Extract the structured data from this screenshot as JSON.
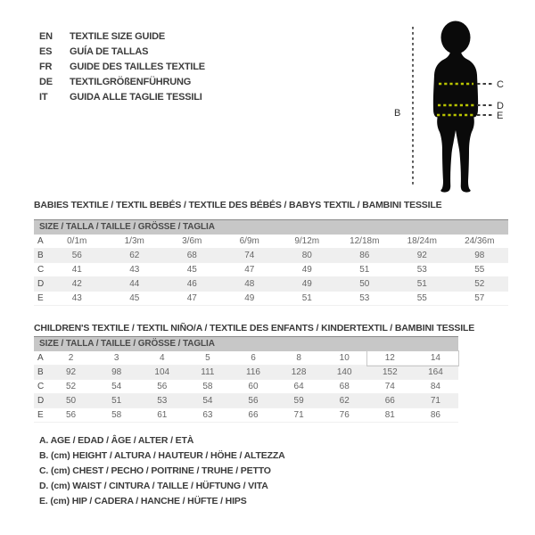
{
  "languages": [
    {
      "code": "EN",
      "label": "TEXTILE SIZE GUIDE"
    },
    {
      "code": "ES",
      "label": "GUÍA DE TALLAS"
    },
    {
      "code": "FR",
      "label": "GUIDE DES TAILLES TEXTILE"
    },
    {
      "code": "DE",
      "label": "TEXTILGRÖßENFÜHRUNG"
    },
    {
      "code": "IT",
      "label": "GUIDA ALLE TAGLIE TESSILI"
    }
  ],
  "figure": {
    "labels": {
      "height": "B",
      "chest": "C",
      "waist": "D",
      "hip": "E"
    },
    "colors": {
      "silhouette": "#0a0a0a",
      "measure_dash": "#b9c400",
      "leader_dash": "#3d3d3d"
    }
  },
  "babies_table": {
    "title": "BABIES TEXTILE / TEXTIL BEBÉS / TEXTILE DES BÉBÉS / BABYS TEXTIL / BAMBINI TESSILE",
    "header": "SIZE / TALLA / TAILLE / GRÖSSE / TAGLIA",
    "rows": [
      {
        "label": "A",
        "values": [
          "0/1m",
          "1/3m",
          "3/6m",
          "6/9m",
          "9/12m",
          "12/18m",
          "18/24m",
          "24/36m"
        ]
      },
      {
        "label": "B",
        "values": [
          "56",
          "62",
          "68",
          "74",
          "80",
          "86",
          "92",
          "98"
        ]
      },
      {
        "label": "C",
        "values": [
          "41",
          "43",
          "45",
          "47",
          "49",
          "51",
          "53",
          "55"
        ]
      },
      {
        "label": "D",
        "values": [
          "42",
          "44",
          "46",
          "48",
          "49",
          "50",
          "51",
          "52"
        ]
      },
      {
        "label": "E",
        "values": [
          "43",
          "45",
          "47",
          "49",
          "51",
          "53",
          "55",
          "57"
        ]
      }
    ]
  },
  "children_table": {
    "title": "CHILDREN'S TEXTILE / TEXTIL NIÑO/A / TEXTILE DES ENFANTS / KINDERTEXTIL / BAMBINI TESSILE",
    "header": "SIZE / TALLA / TAILLE / GRÖSSE / TAGLIA",
    "rows": [
      {
        "label": "A",
        "values": [
          "2",
          "3",
          "4",
          "5",
          "6",
          "8",
          "10",
          "12",
          "14"
        ]
      },
      {
        "label": "B",
        "values": [
          "92",
          "98",
          "104",
          "111",
          "116",
          "128",
          "140",
          "152",
          "164"
        ]
      },
      {
        "label": "C",
        "values": [
          "52",
          "54",
          "56",
          "58",
          "60",
          "64",
          "68",
          "74",
          "84"
        ]
      },
      {
        "label": "D",
        "values": [
          "50",
          "51",
          "53",
          "54",
          "56",
          "59",
          "62",
          "66",
          "71"
        ]
      },
      {
        "label": "E",
        "values": [
          "56",
          "58",
          "61",
          "63",
          "66",
          "71",
          "76",
          "81",
          "86"
        ]
      }
    ],
    "highlighted_sizes": [
      "12",
      "14"
    ]
  },
  "legend": [
    "A. AGE / EDAD / ÂGE / ALTER / ETÀ",
    "B. (cm) HEIGHT / ALTURA / HAUTEUR / HÖHE / ALTEZZA",
    "C. (cm) CHEST / PECHO / POITRINE / TRUHE / PETTO",
    "D. (cm) WAIST / CINTURA / TAILLE / HÜFTUNG / VITA",
    "E. (cm) HIP / CADERA / HANCHE / HÜFTE / HIPS"
  ],
  "ui_colors": {
    "table_header_bar": "#c7c7c7",
    "row_stripe": "#efefef",
    "text_dark": "#3a3a3a",
    "text_table": "#666666"
  }
}
